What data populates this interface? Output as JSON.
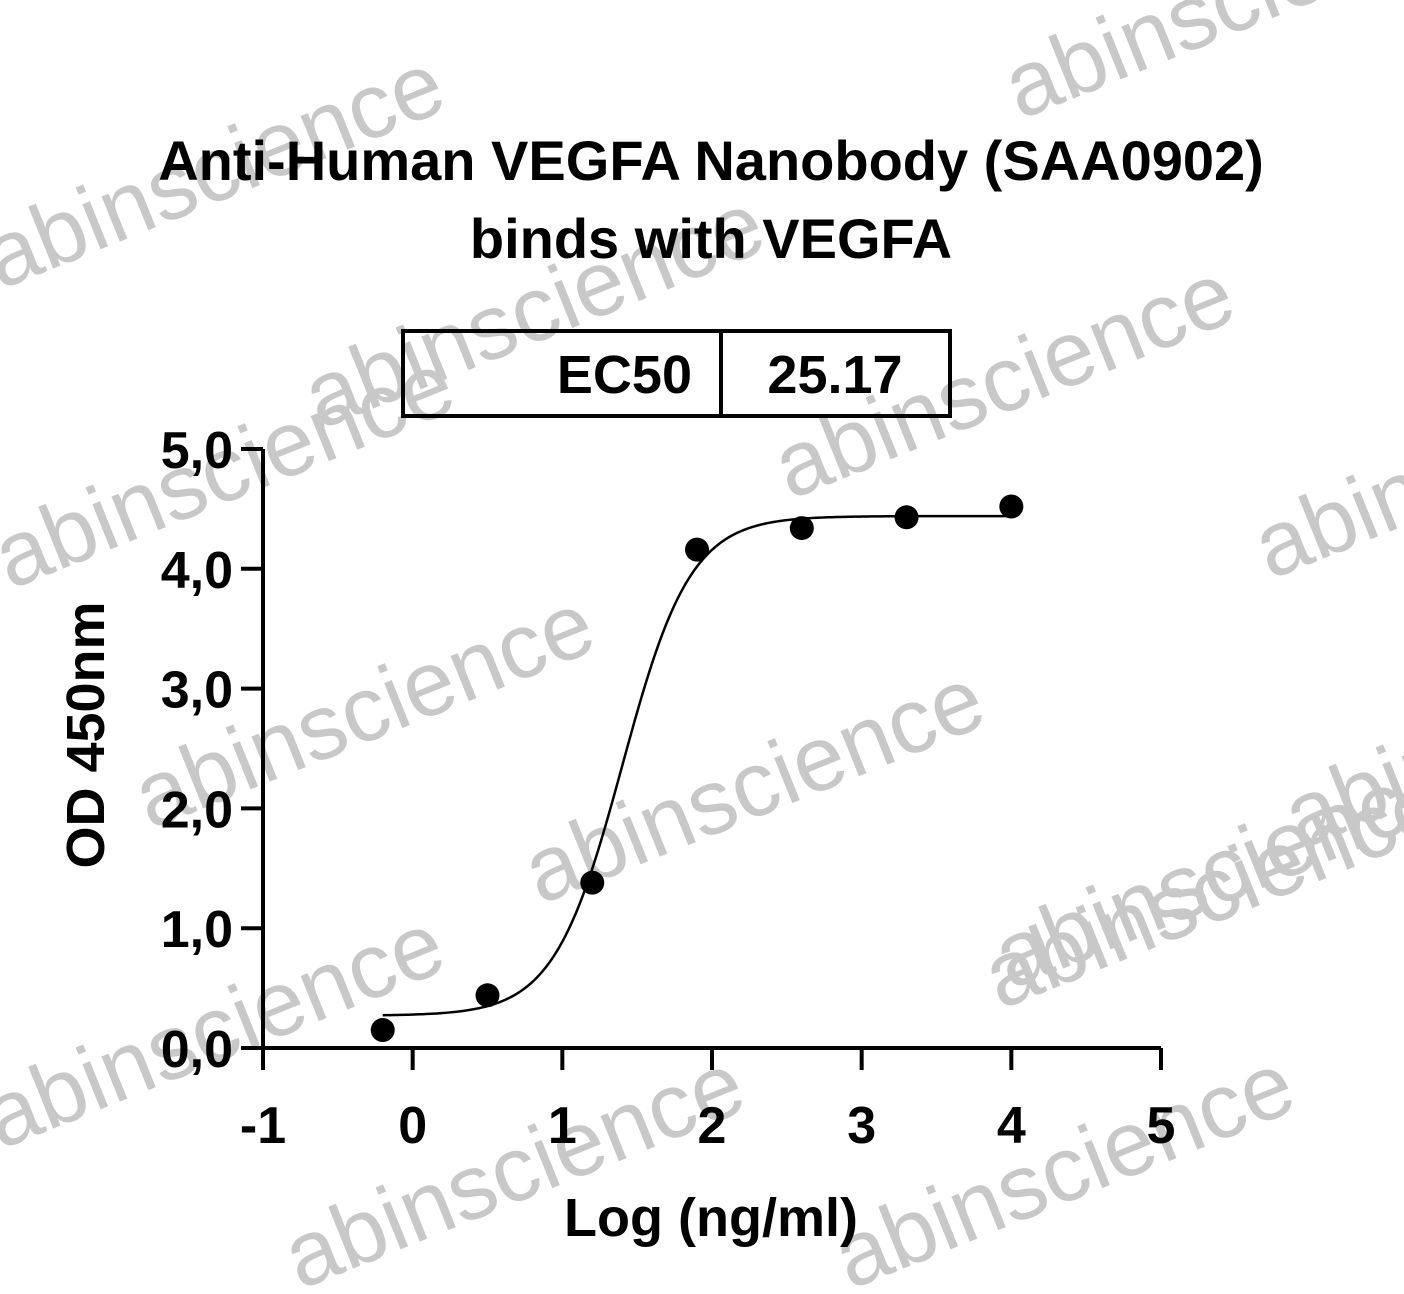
{
  "watermark": {
    "text": "abinscience",
    "color": "#c8c8c8"
  },
  "chart_data": {
    "type": "scatter",
    "title": "Anti-Human VEGFA Nanobody (SAA0902)",
    "subtitle": "binds with VEGFA",
    "xlabel": "Log (ng/ml)",
    "ylabel": "OD 450nm",
    "xlim": [
      -1,
      5
    ],
    "ylim": [
      0,
      5
    ],
    "x_ticks": [
      -1,
      0,
      1,
      2,
      3,
      4,
      5
    ],
    "x_tick_labels": [
      "-1",
      "0",
      "1",
      "2",
      "3",
      "4",
      "5"
    ],
    "y_ticks": [
      0,
      1,
      2,
      3,
      4,
      5
    ],
    "y_tick_labels": [
      "0,0",
      "1,0",
      "2,0",
      "3,0",
      "4,0",
      "5,0"
    ],
    "grid": false,
    "points": [
      {
        "x": -0.2,
        "y": 0.15
      },
      {
        "x": 0.5,
        "y": 0.44
      },
      {
        "x": 1.2,
        "y": 1.38
      },
      {
        "x": 1.9,
        "y": 4.16
      },
      {
        "x": 2.6,
        "y": 4.34
      },
      {
        "x": 3.3,
        "y": 4.43
      },
      {
        "x": 4.0,
        "y": 4.52
      }
    ],
    "fit_curve": {
      "model": "4PL",
      "bottom": 0.27,
      "top": 4.44,
      "log_ec50": 1.4,
      "hill": 1.9,
      "x_range": [
        -0.2,
        4.0
      ]
    },
    "ec50_table": {
      "label": "EC50",
      "value": "25.17"
    },
    "colors": {
      "points": "#000000",
      "curve": "#000000",
      "axes": "#000000"
    }
  }
}
